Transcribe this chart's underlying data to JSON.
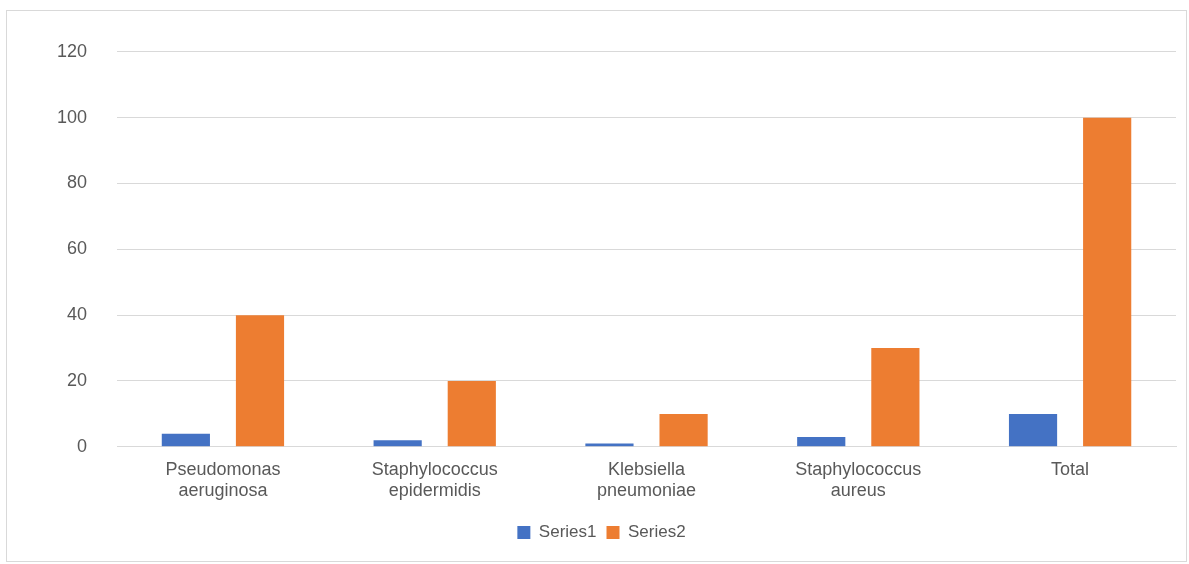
{
  "chart_data": {
    "type": "bar",
    "categories": [
      "Pseudomonas aeruginosa",
      "Staphylococcus epidermidis",
      "Klebsiella pneumoniae",
      "Staphylococcus aureus",
      "Total"
    ],
    "series": [
      {
        "name": "Series1",
        "color": "#4472c4",
        "values": [
          4,
          2,
          1,
          3,
          10
        ]
      },
      {
        "name": "Series2",
        "color": "#ed7d31",
        "values": [
          40,
          20,
          10,
          30,
          100
        ]
      }
    ],
    "ylim": [
      0,
      120
    ],
    "yticks": [
      0,
      20,
      40,
      60,
      80,
      100,
      120
    ],
    "grid": "y",
    "legend": "bottom"
  }
}
